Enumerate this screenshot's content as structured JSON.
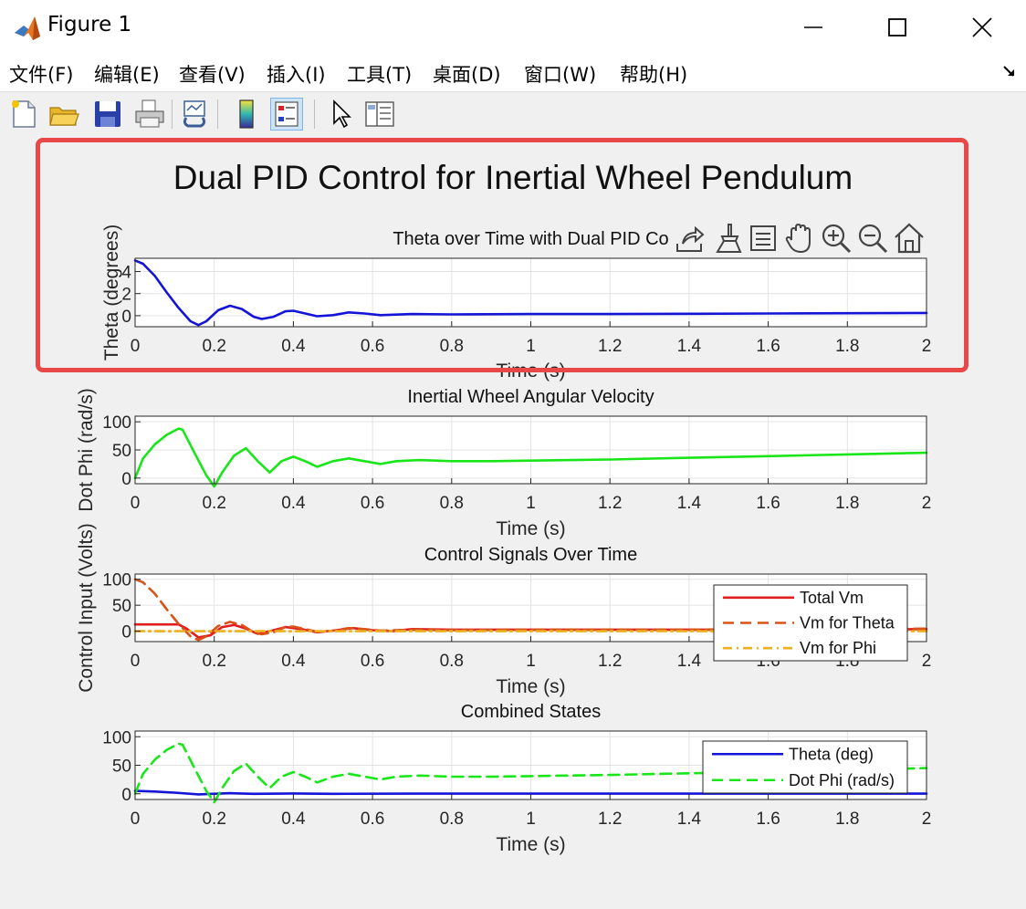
{
  "window": {
    "title": "Figure 1"
  },
  "menu": [
    "文件(F)",
    "编辑(E)",
    "查看(V)",
    "插入(I)",
    "工具(T)",
    "桌面(D)",
    "窗口(W)",
    "帮助(H)"
  ],
  "toolbar": {
    "icons": [
      "new-figure-icon",
      "open-file-icon",
      "save-icon",
      "print-icon",
      "link-plot-icon",
      "colorbar-icon",
      "legend-icon",
      "pointer-icon",
      "property-inspector-icon"
    ],
    "active": "legend-icon"
  },
  "axes_toolbar": [
    "export-icon",
    "brush-icon",
    "data-tips-icon",
    "pan-icon",
    "zoom-in-icon",
    "zoom-out-icon",
    "home-icon"
  ],
  "figure": {
    "suptitle": "Dual PID Control for Inertial Wheel Pendulum"
  },
  "colors": {
    "red": "#e01e1e",
    "blue": "#1414d6",
    "green": "#19e619",
    "orange": "#d95319",
    "gold": "#edb120",
    "highlight": "#e84848"
  },
  "chart_data": [
    {
      "type": "line",
      "title": "Theta over Time with Dual PID Co",
      "xlabel": "Time (s)",
      "ylabel": "Theta (degrees)",
      "xlim": [
        0,
        2
      ],
      "ylim": [
        -1,
        5.2
      ],
      "xticks": [
        "0",
        "0.2",
        "0.4",
        "0.6",
        "0.8",
        "1",
        "1.2",
        "1.4",
        "1.6",
        "1.8",
        "2"
      ],
      "yticks": [
        "0",
        "2",
        "4"
      ],
      "ytick_values": [
        0,
        2,
        4
      ],
      "grid": true,
      "series": [
        {
          "color": "blue",
          "x": [
            0,
            0.02,
            0.05,
            0.08,
            0.11,
            0.14,
            0.16,
            0.18,
            0.21,
            0.24,
            0.27,
            0.3,
            0.32,
            0.35,
            0.38,
            0.4,
            0.43,
            0.46,
            0.5,
            0.54,
            0.58,
            0.62,
            0.7,
            0.8,
            1.0,
            1.2,
            1.4,
            1.6,
            1.8,
            2.0
          ],
          "y": [
            5,
            4.7,
            3.6,
            2.1,
            0.7,
            -0.5,
            -0.85,
            -0.5,
            0.5,
            0.9,
            0.6,
            -0.1,
            -0.3,
            -0.1,
            0.4,
            0.45,
            0.2,
            -0.05,
            0.05,
            0.3,
            0.2,
            0.05,
            0.15,
            0.12,
            0.15,
            0.15,
            0.17,
            0.2,
            0.22,
            0.25
          ]
        }
      ]
    },
    {
      "type": "line",
      "title": "Inertial Wheel Angular Velocity",
      "xlabel": "Time (s)",
      "ylabel": "Dot Phi (rad/s)",
      "xlim": [
        0,
        2
      ],
      "ylim": [
        -10,
        110
      ],
      "xticks": [
        "0",
        "0.2",
        "0.4",
        "0.6",
        "0.8",
        "1",
        "1.2",
        "1.4",
        "1.6",
        "1.8",
        "2"
      ],
      "yticks": [
        "0",
        "50",
        "100"
      ],
      "ytick_values": [
        0,
        50,
        100
      ],
      "grid": true,
      "series": [
        {
          "color": "green",
          "x": [
            0,
            0.02,
            0.05,
            0.08,
            0.11,
            0.12,
            0.15,
            0.18,
            0.2,
            0.22,
            0.25,
            0.28,
            0.31,
            0.34,
            0.37,
            0.4,
            0.43,
            0.46,
            0.5,
            0.54,
            0.58,
            0.62,
            0.66,
            0.72,
            0.8,
            0.9,
            1.0,
            1.2,
            1.4,
            1.6,
            1.8,
            2.0
          ],
          "y": [
            0,
            35,
            60,
            77,
            88,
            86,
            45,
            5,
            -15,
            10,
            40,
            53,
            30,
            10,
            30,
            38,
            30,
            20,
            30,
            35,
            30,
            25,
            30,
            32,
            30,
            30,
            31,
            33,
            36,
            39,
            42,
            45
          ]
        }
      ]
    },
    {
      "type": "line",
      "title": "Control Signals Over Time",
      "xlabel": "Time (s)",
      "ylabel": "Control Input (Volts)",
      "xlim": [
        0,
        2
      ],
      "ylim": [
        -20,
        110
      ],
      "xticks": [
        "0",
        "0.2",
        "0.4",
        "0.6",
        "0.8",
        "1",
        "1.2",
        "1.4",
        "1.6",
        "1.8",
        "2"
      ],
      "yticks": [
        "0",
        "50",
        "100"
      ],
      "ytick_values": [
        0,
        50,
        100
      ],
      "grid": true,
      "legend": "top-right",
      "series": [
        {
          "name": "Total Vm",
          "color": "red",
          "style": "solid",
          "x": [
            0,
            0.11,
            0.13,
            0.16,
            0.19,
            0.22,
            0.25,
            0.28,
            0.31,
            0.35,
            0.38,
            0.42,
            0.46,
            0.5,
            0.55,
            0.6,
            0.65,
            0.7,
            0.8,
            1.0,
            1.2,
            1.4,
            1.6,
            1.8,
            2.0
          ],
          "y": [
            13,
            13,
            5,
            -12,
            -8,
            8,
            12,
            5,
            -5,
            2,
            8,
            4,
            -2,
            1,
            6,
            2,
            0,
            4,
            3,
            3,
            3,
            3,
            3,
            3,
            4
          ]
        },
        {
          "name": "Vm for Theta",
          "color": "orange",
          "style": "dashed",
          "x": [
            0,
            0.02,
            0.05,
            0.08,
            0.11,
            0.14,
            0.16,
            0.18,
            0.21,
            0.24,
            0.27,
            0.3,
            0.32,
            0.35,
            0.38,
            0.4,
            0.43,
            0.46,
            0.5,
            0.54,
            0.58,
            0.62,
            0.7,
            0.8,
            1.0,
            1.2,
            1.4,
            1.6,
            1.8,
            2.0
          ],
          "y": [
            100,
            94,
            72,
            42,
            14,
            -10,
            -17,
            -10,
            10,
            18,
            12,
            -2,
            -6,
            -2,
            8,
            9,
            4,
            -1,
            1,
            6,
            4,
            1,
            3,
            2,
            3,
            3,
            3,
            4,
            4,
            5
          ]
        },
        {
          "name": "Vm for Phi",
          "color": "gold",
          "style": "dashdot",
          "x": [
            0,
            2
          ],
          "y": [
            0,
            0
          ]
        }
      ]
    },
    {
      "type": "line",
      "title": "Combined States",
      "xlabel": "Time (s)",
      "xlim": [
        0,
        2
      ],
      "ylim": [
        -10,
        110
      ],
      "xticks": [
        "0",
        "0.2",
        "0.4",
        "0.6",
        "0.8",
        "1",
        "1.2",
        "1.4",
        "1.6",
        "1.8",
        "2"
      ],
      "yticks": [
        "0",
        "50",
        "100"
      ],
      "ytick_values": [
        0,
        50,
        100
      ],
      "grid": true,
      "legend": "top-right",
      "series": [
        {
          "name": "Theta (deg)",
          "color": "blue",
          "style": "solid",
          "x": [
            0,
            0.05,
            0.1,
            0.16,
            0.24,
            0.3,
            0.4,
            0.5,
            0.7,
            1.0,
            1.5,
            2.0
          ],
          "y": [
            5,
            4,
            2,
            -1,
            1,
            0,
            0.5,
            0,
            0.2,
            0.2,
            0.2,
            0.3
          ]
        },
        {
          "name": "Dot Phi (rad/s)",
          "color": "green",
          "style": "dashed",
          "x": [
            0,
            0.02,
            0.05,
            0.08,
            0.11,
            0.12,
            0.15,
            0.18,
            0.2,
            0.22,
            0.25,
            0.28,
            0.31,
            0.34,
            0.37,
            0.4,
            0.43,
            0.46,
            0.5,
            0.54,
            0.58,
            0.62,
            0.66,
            0.72,
            0.8,
            0.9,
            1.0,
            1.2,
            1.4,
            1.6,
            1.8,
            2.0
          ],
          "y": [
            0,
            35,
            60,
            77,
            88,
            86,
            45,
            5,
            -15,
            10,
            40,
            53,
            30,
            10,
            30,
            38,
            30,
            20,
            30,
            35,
            30,
            25,
            30,
            32,
            30,
            30,
            31,
            33,
            36,
            39,
            42,
            45
          ]
        }
      ]
    }
  ]
}
